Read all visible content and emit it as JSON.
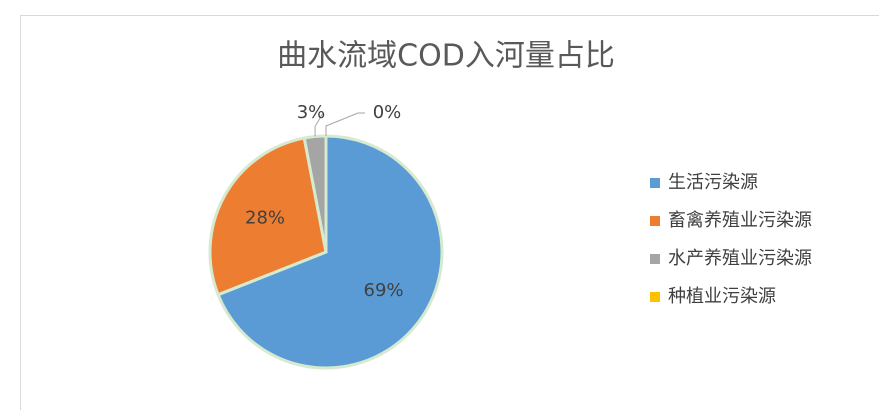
{
  "chart_data": {
    "type": "pie",
    "title": "曲水流域COD入河量占比",
    "categories": [
      "生活污染源",
      "畜禽养殖业污染源",
      "水产养殖业污染源",
      "种植业污染源"
    ],
    "values": [
      69,
      28,
      3,
      0
    ],
    "value_labels": [
      "69%",
      "28%",
      "3%",
      "0%"
    ],
    "colors": [
      "#5b9bd5",
      "#ed7d31",
      "#a5a5a5",
      "#ffc000"
    ],
    "legend": "right"
  }
}
